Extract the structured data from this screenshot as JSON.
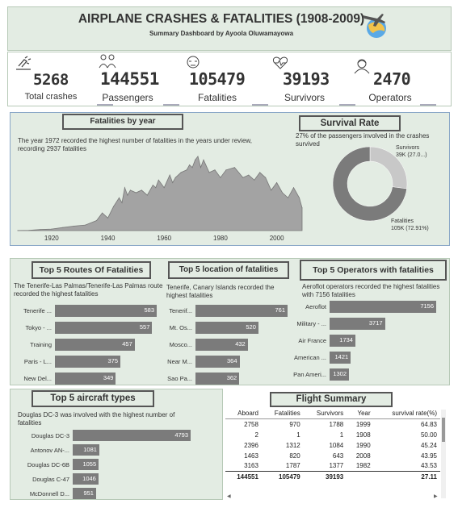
{
  "header": {
    "title": "AIRPLANE CRASHES & FATALITIES (1908-2009)",
    "subtitle": "Summary Dashboard by Ayoola Oluwamayowa"
  },
  "kpis": [
    {
      "value": "5268",
      "label": "Total crashes",
      "icon": "crash-icon"
    },
    {
      "value": "144551",
      "label": "Passengers",
      "icon": "passengers-icon"
    },
    {
      "value": "105479",
      "label": "Fatalities",
      "icon": "fatalities-icon"
    },
    {
      "value": "39193",
      "label": "Survivors",
      "icon": "survivors-icon"
    },
    {
      "value": "2470",
      "label": "Operators",
      "icon": "operators-icon"
    }
  ],
  "fatalities_by_year": {
    "title": "Fatalities by year",
    "note": "The year 1972 recorded the highest number of fatalities in the years under review, recording 2937 fatalities"
  },
  "survival_rate": {
    "title": "Survival Rate",
    "note": "27% of the passengers involved in the crashes survived",
    "survivors_label": "Survivors",
    "survivors_value": "39K (27.0...)",
    "fatalities_label": "Fatalities",
    "fatalities_value": "105K (72.91%)"
  },
  "routes": {
    "title": "Top 5 Routes Of Fatalities",
    "note": "The Tenerife-Las Palmas/Tenerife-Las Palmas route recorded the highest fatalities"
  },
  "locations": {
    "title": "Top 5 location of fatalities",
    "note": "Tenerife, Canary Islands recorded the highest fatalities"
  },
  "operators": {
    "title": "Top 5 Operators with fatalities",
    "note": "Aeroflot operators recorded the highest fatalities with 7156 fatalities"
  },
  "aircraft": {
    "title": "Top 5 aircraft types",
    "note": "Douglas DC-3 was involved with the highest number of fatalities"
  },
  "flight_summary": {
    "title": "Flight Summary",
    "columns": [
      "Aboard",
      "Fatalities",
      "Survivors",
      "Year",
      "survival rate(%)"
    ],
    "rows": [
      [
        "2758",
        "970",
        "1788",
        "1999",
        "64.83"
      ],
      [
        "2",
        "1",
        "1",
        "1908",
        "50.00"
      ],
      [
        "2396",
        "1312",
        "1084",
        "1990",
        "45.24"
      ],
      [
        "1463",
        "820",
        "643",
        "2008",
        "43.95"
      ],
      [
        "3163",
        "1787",
        "1377",
        "1982",
        "43.53"
      ]
    ],
    "totals": [
      "144551",
      "105479",
      "39193",
      "",
      "27.11"
    ]
  },
  "chart_data": [
    {
      "type": "area",
      "title": "Fatalities by year",
      "x_ticks": [
        "1920",
        "1940",
        "1960",
        "1980",
        "2000"
      ],
      "xlim": [
        1908,
        2009
      ],
      "ylim": [
        0,
        3000
      ],
      "x": [
        1908,
        1912,
        1916,
        1920,
        1924,
        1928,
        1932,
        1936,
        1938,
        1940,
        1942,
        1944,
        1945,
        1946,
        1947,
        1948,
        1950,
        1952,
        1954,
        1956,
        1957,
        1958,
        1960,
        1962,
        1963,
        1964,
        1966,
        1968,
        1969,
        1970,
        1971,
        1972,
        1973,
        1974,
        1976,
        1978,
        1980,
        1982,
        1985,
        1988,
        1990,
        1992,
        1994,
        1996,
        1998,
        2000,
        2002,
        2004,
        2006,
        2008,
        2009
      ],
      "y": [
        2,
        10,
        40,
        60,
        120,
        180,
        220,
        400,
        700,
        500,
        950,
        1300,
        1100,
        1700,
        1400,
        1600,
        1500,
        1600,
        1400,
        1800,
        1700,
        2000,
        1700,
        2200,
        1900,
        2100,
        2300,
        2400,
        2600,
        2500,
        2800,
        2937,
        2500,
        2800,
        2300,
        2400,
        2100,
        2400,
        2500,
        2100,
        2200,
        2000,
        2300,
        2100,
        1600,
        1900,
        1500,
        1300,
        1700,
        1300,
        900
      ]
    },
    {
      "type": "pie",
      "title": "Survival Rate",
      "categories": [
        "Survivors",
        "Fatalities"
      ],
      "values": [
        27.09,
        72.91
      ]
    },
    {
      "type": "bar",
      "title": "Top 5 Routes Of Fatalities",
      "categories": [
        "Tenerife ...",
        "Tokyo - ...",
        "Training",
        "Paris - L...",
        "New Del..."
      ],
      "values": [
        583,
        557,
        457,
        375,
        349
      ]
    },
    {
      "type": "bar",
      "title": "Top 5 location of fatalities",
      "categories": [
        "Tenerif...",
        "Mt. Os...",
        "Mosco...",
        "Near M...",
        "Sao Pa..."
      ],
      "values": [
        761,
        520,
        432,
        364,
        362
      ]
    },
    {
      "type": "bar",
      "title": "Top 5 Operators with fatalities",
      "categories": [
        "Aeroflot",
        "Military - ...",
        "Air France",
        "American ...",
        "Pan Ameri..."
      ],
      "values": [
        7156,
        3717,
        1734,
        1421,
        1302
      ]
    },
    {
      "type": "bar",
      "title": "Top 5 aircraft types",
      "categories": [
        "Douglas DC-3",
        "Antonov AN-...",
        "Douglas DC-6B",
        "Douglas C-47",
        "McDonnell D..."
      ],
      "values": [
        4793,
        1081,
        1055,
        1046,
        951
      ]
    }
  ]
}
